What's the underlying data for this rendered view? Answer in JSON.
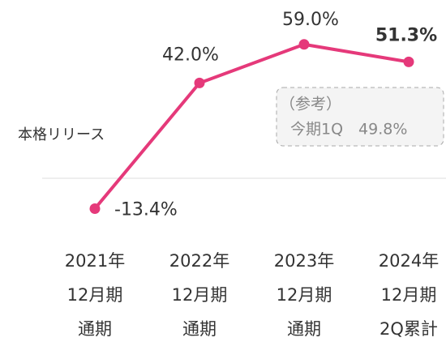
{
  "chart_data": {
    "type": "line",
    "categories": [
      [
        "2021年",
        "12月期",
        "通期"
      ],
      [
        "2022年",
        "12月期",
        "通期"
      ],
      [
        "2023年",
        "12月期",
        "通期"
      ],
      [
        "2024年",
        "12月期",
        "2Q累計"
      ]
    ],
    "series": [
      {
        "color": "#e5397a",
        "values": [
          -13.4,
          42.0,
          59.0,
          51.3
        ],
        "value_labels": [
          "-13.4%",
          "42.0%",
          "59.0%",
          "51.3%"
        ]
      }
    ],
    "ylim": [
      -20,
      60
    ],
    "annotations": [
      "本格リリース"
    ],
    "reference_box": [
      "（参考）",
      "今期1Q　49.8%"
    ]
  }
}
